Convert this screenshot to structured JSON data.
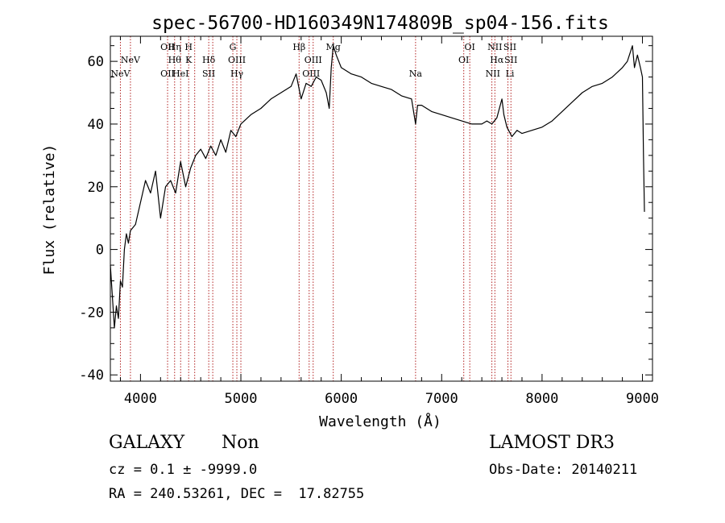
{
  "chart_data": {
    "type": "line",
    "title": "spec-56700-HD160349N174809B_sp04-156.fits",
    "xlabel": "Wavelength (Å)",
    "ylabel": "Flux (relative)",
    "xlim": [
      3700,
      9100
    ],
    "ylim": [
      -42,
      68
    ],
    "x_ticks": [
      4000,
      5000,
      6000,
      7000,
      8000,
      9000
    ],
    "y_ticks": [
      -40,
      -20,
      0,
      20,
      40,
      60
    ],
    "grid": false,
    "line_color": "#000000",
    "marker_color": "#b22222",
    "series": [
      {
        "x": [
          3700,
          3720,
          3740,
          3760,
          3780,
          3800,
          3820,
          3840,
          3860,
          3880,
          3900,
          3950,
          4000,
          4050,
          4100,
          4150,
          4200,
          4250,
          4300,
          4350,
          4400,
          4450,
          4500,
          4550,
          4600,
          4650,
          4700,
          4750,
          4800,
          4850,
          4900,
          4950,
          5000,
          5100,
          5200,
          5300,
          5400,
          5500,
          5550,
          5600,
          5650,
          5700,
          5750,
          5800,
          5850,
          5880,
          5900,
          5920,
          5950,
          6000,
          6100,
          6200,
          6300,
          6400,
          6500,
          6600,
          6700,
          6740,
          6760,
          6800,
          6900,
          7000,
          7100,
          7200,
          7300,
          7400,
          7450,
          7500,
          7550,
          7600,
          7620,
          7650,
          7700,
          7750,
          7800,
          7900,
          8000,
          8100,
          8200,
          8300,
          8400,
          8500,
          8600,
          8700,
          8800,
          8850,
          8900,
          8920,
          8950,
          8980,
          9000,
          9010,
          9020
        ],
        "y": [
          -5,
          -15,
          -25,
          -18,
          -22,
          -10,
          -12,
          0,
          5,
          2,
          6,
          8,
          15,
          22,
          18,
          25,
          10,
          20,
          22,
          18,
          28,
          20,
          26,
          30,
          32,
          29,
          33,
          30,
          35,
          31,
          38,
          36,
          40,
          43,
          45,
          48,
          50,
          52,
          56,
          48,
          53,
          52,
          55,
          54,
          50,
          45,
          58,
          65,
          62,
          58,
          56,
          55,
          53,
          52,
          51,
          49,
          48,
          40,
          46,
          46,
          44,
          43,
          42,
          41,
          40,
          40,
          41,
          40,
          42,
          48,
          43,
          39,
          36,
          38,
          37,
          38,
          39,
          41,
          44,
          47,
          50,
          52,
          53,
          55,
          58,
          60,
          65,
          58,
          62,
          58,
          55,
          30,
          12
        ]
      }
    ],
    "line_labels": [
      {
        "x": 3800,
        "row": 2,
        "label": "NeV"
      },
      {
        "x": 3900,
        "row": 1,
        "label": "NeV"
      },
      {
        "x": 4270,
        "row": 0,
        "label": "OII"
      },
      {
        "x": 4270,
        "row": 2,
        "label": "OII"
      },
      {
        "x": 4340,
        "row": 0,
        "label": "Hη"
      },
      {
        "x": 4340,
        "row": 1,
        "label": "Hθ"
      },
      {
        "x": 4400,
        "row": 2,
        "label": "HeI"
      },
      {
        "x": 4480,
        "row": 0,
        "label": "H"
      },
      {
        "x": 4480,
        "row": 1,
        "label": "K"
      },
      {
        "x": 4680,
        "row": 1,
        "label": "Hδ"
      },
      {
        "x": 4680,
        "row": 2,
        "label": "SII"
      },
      {
        "x": 4920,
        "row": 0,
        "label": "G"
      },
      {
        "x": 4960,
        "row": 1,
        "label": "OIII"
      },
      {
        "x": 4960,
        "row": 2,
        "label": "Hγ"
      },
      {
        "x": 5580,
        "row": 0,
        "label": "Hβ"
      },
      {
        "x": 5720,
        "row": 1,
        "label": "OIII"
      },
      {
        "x": 5700,
        "row": 2,
        "label": "OIII"
      },
      {
        "x": 5920,
        "row": 0,
        "label": "Mg"
      },
      {
        "x": 6740,
        "row": 2,
        "label": "Na"
      },
      {
        "x": 7280,
        "row": 0,
        "label": "OI"
      },
      {
        "x": 7220,
        "row": 1,
        "label": "OI"
      },
      {
        "x": 7530,
        "row": 0,
        "label": "NII"
      },
      {
        "x": 7680,
        "row": 0,
        "label": "SII"
      },
      {
        "x": 7550,
        "row": 1,
        "label": "Hα"
      },
      {
        "x": 7690,
        "row": 1,
        "label": "SII"
      },
      {
        "x": 7510,
        "row": 2,
        "label": "NII"
      },
      {
        "x": 7680,
        "row": 2,
        "label": "Li"
      }
    ],
    "line_markers": [
      3800,
      3900,
      4270,
      4340,
      4400,
      4480,
      4540,
      4680,
      4720,
      4920,
      4960,
      5000,
      5580,
      5680,
      5720,
      5920,
      6740,
      7220,
      7280,
      7500,
      7530,
      7660,
      7690
    ]
  },
  "info": {
    "class_label": "GALAXY",
    "subclass_label": "Non",
    "survey_label": "LAMOST DR3",
    "cz_line": "cz = 0.1 ± -9999.0",
    "obs_date_line": "Obs-Date: 20140211",
    "radec_line": "RA = 240.53261, DEC =  17.82755"
  }
}
